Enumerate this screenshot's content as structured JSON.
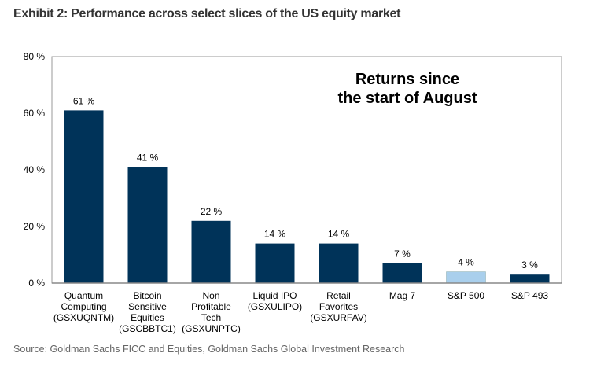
{
  "title": "Exhibit 2: Performance across select slices of the US equity market",
  "source": "Source: Goldman Sachs FICC and Equities, Goldman Sachs Global Investment Research",
  "chart_data": {
    "type": "bar",
    "annotation": [
      "Returns since",
      "the start of August"
    ],
    "categories": [
      [
        "Quantum",
        "Computing",
        "(GSXUQNTM)"
      ],
      [
        "Bitcoin",
        "Sensitive",
        "Equities",
        "(GSCBBTC1)"
      ],
      [
        "Non",
        "Profitable",
        "Tech",
        "(GSXUNPTC)"
      ],
      [
        "Liquid IPO",
        "(GSXULIPO)"
      ],
      [
        "Retail",
        "Favorites",
        "(GSXURFAV)"
      ],
      [
        "Mag 7"
      ],
      [
        "S&P 500"
      ],
      [
        "S&P 493"
      ]
    ],
    "values": [
      61,
      41,
      22,
      14,
      14,
      7,
      4,
      3
    ],
    "data_labels": [
      "61 %",
      "41 %",
      "22 %",
      "14 %",
      "14 %",
      "7 %",
      "4 %",
      "3 %"
    ],
    "yticks": [
      0,
      20,
      40,
      60,
      80
    ],
    "ytick_labels": [
      "0 %",
      "20 %",
      "40 %",
      "60 %",
      "80 %"
    ],
    "ylim": [
      0,
      80
    ],
    "xlabel": "",
    "ylabel": "",
    "grid": false,
    "colors": {
      "default": "#003359",
      "highlight": "#a9cfec",
      "highlight_index": 6
    }
  }
}
